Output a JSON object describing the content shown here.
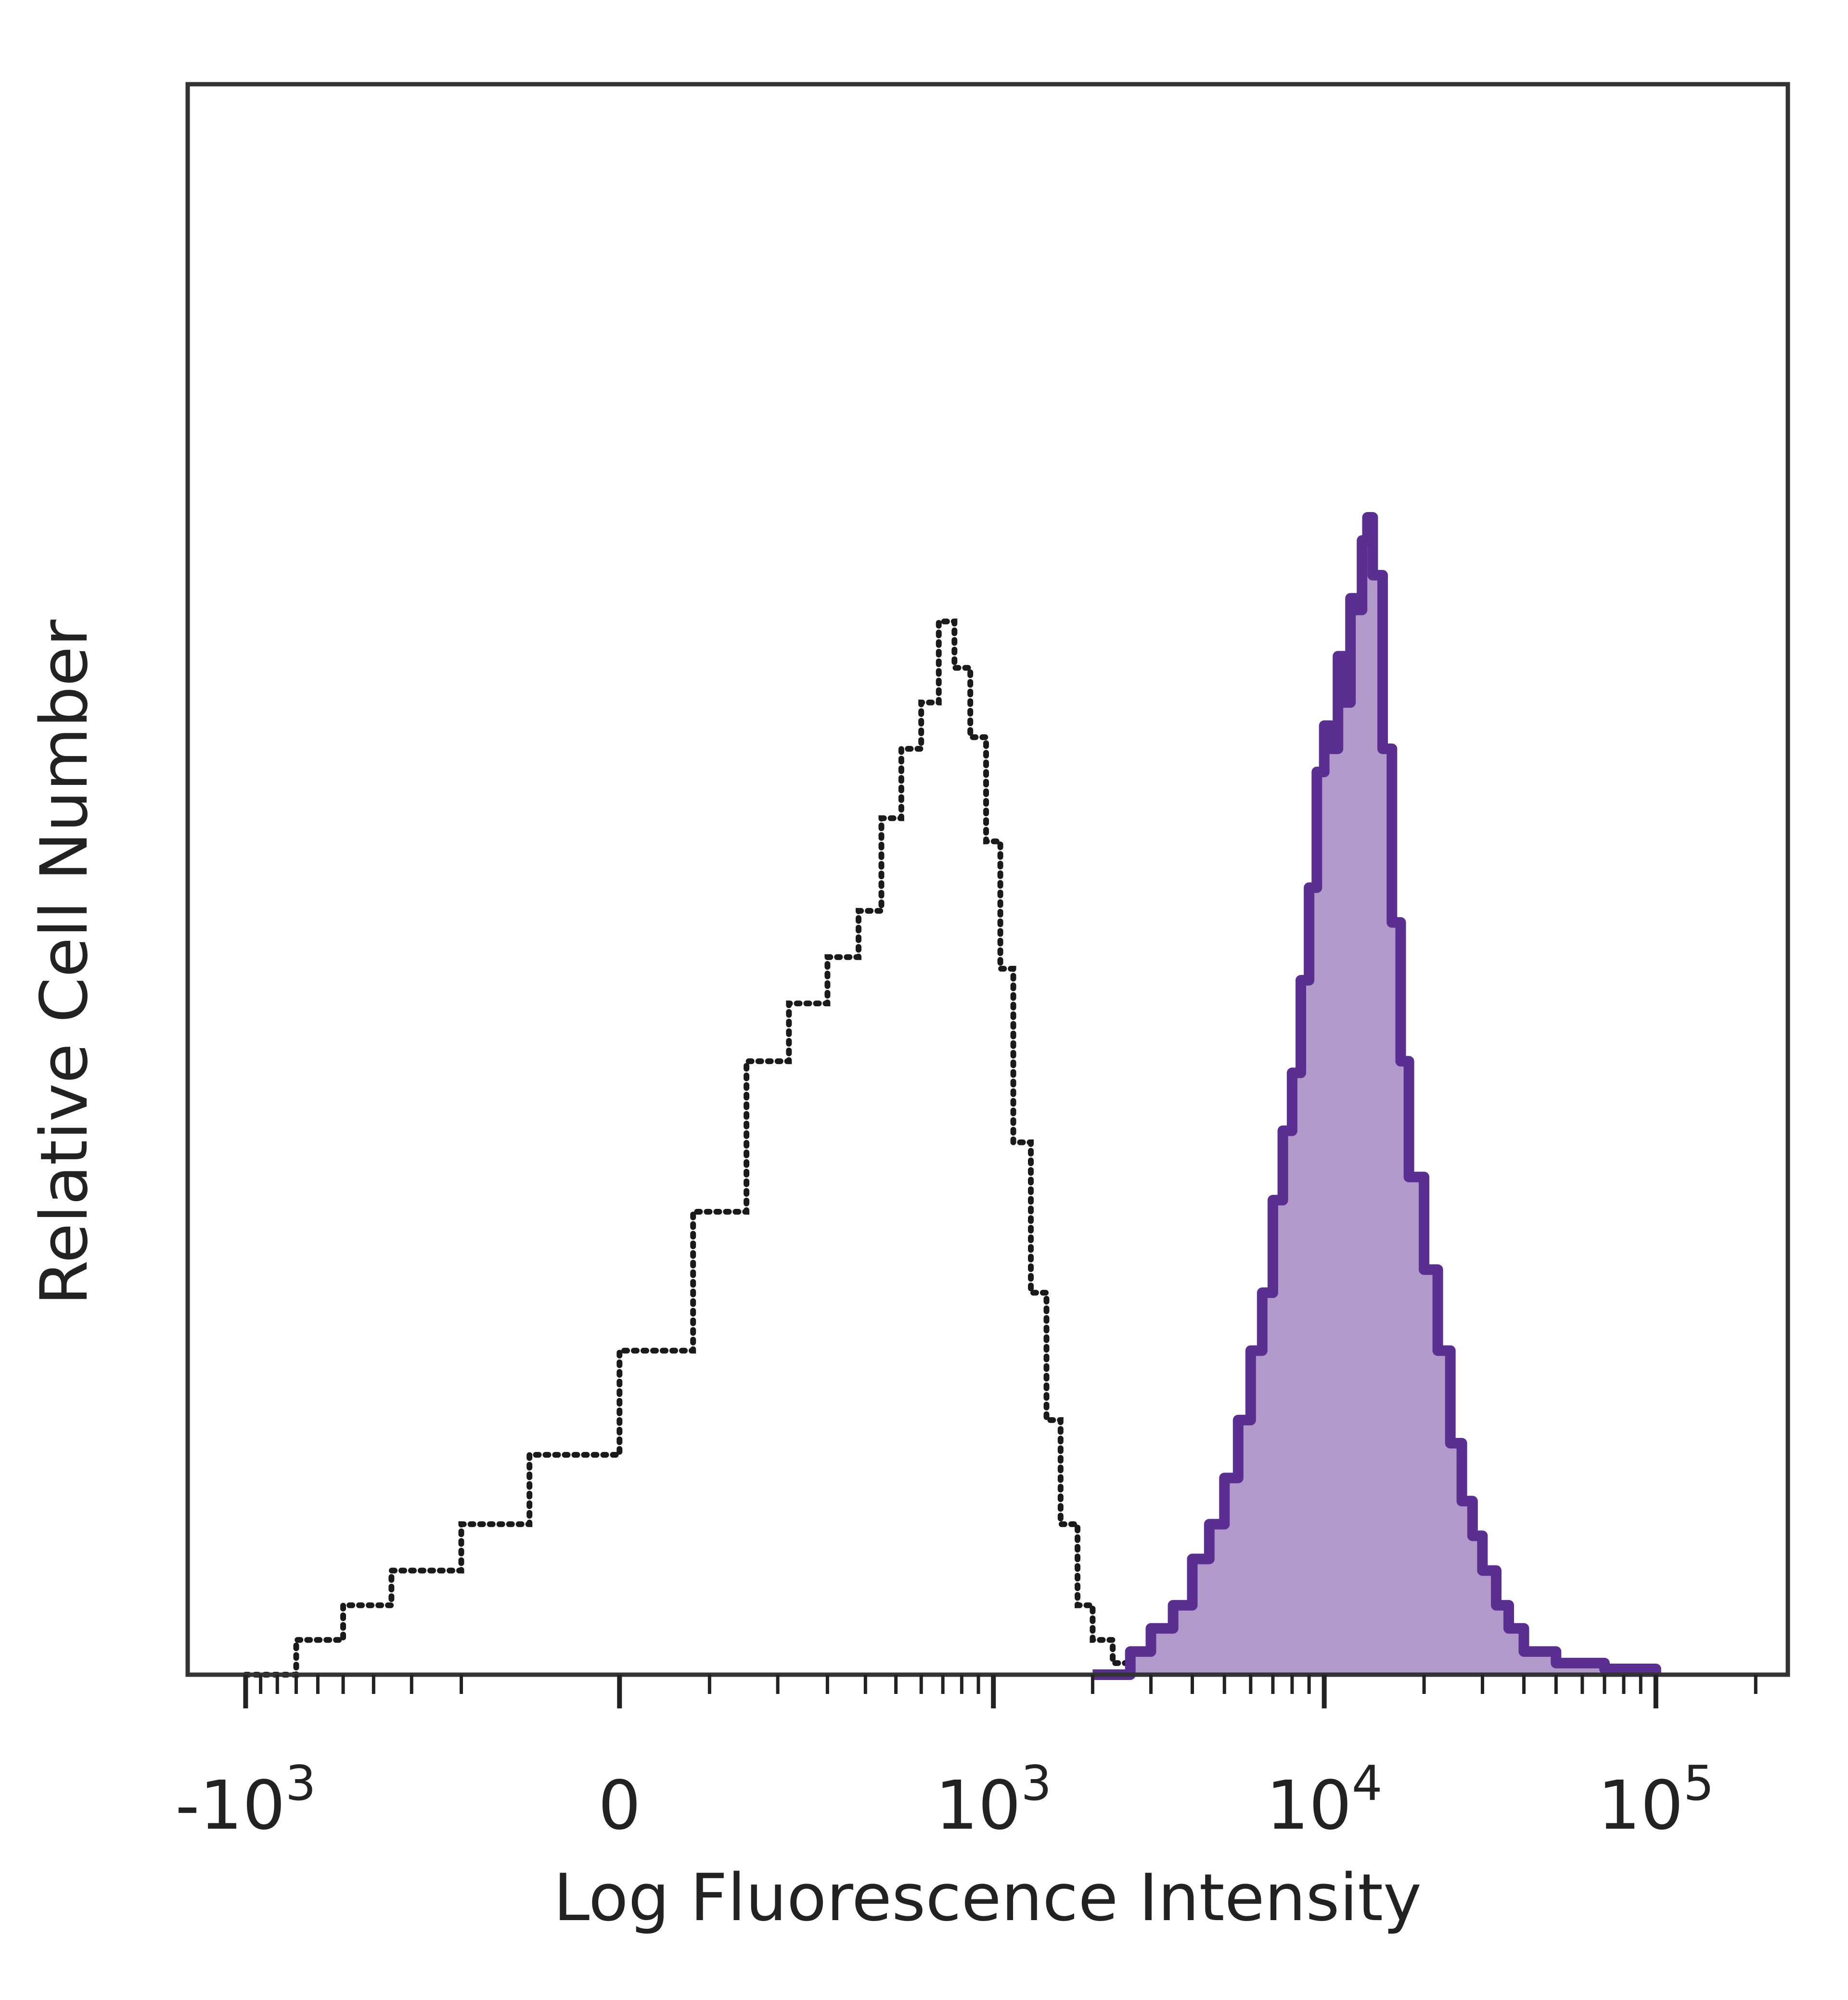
{
  "chart_data": {
    "type": "area",
    "title": "",
    "xlabel": "Log Fluorescence Intensity",
    "ylabel": "Relative Cell Number",
    "x_scale": "biexponential",
    "xlim": [
      -1500,
      250000
    ],
    "ylim": [
      0,
      100
    ],
    "grid": false,
    "legend": "none",
    "x_ticks": [
      {
        "value": -1000,
        "base": "-10",
        "exp": "3"
      },
      {
        "value": 0,
        "base": "0",
        "exp": ""
      },
      {
        "value": 1000,
        "base": "10",
        "exp": "3"
      },
      {
        "value": 10000,
        "base": "10",
        "exp": "4"
      },
      {
        "value": 100000,
        "base": "10",
        "exp": "5"
      }
    ],
    "series": [
      {
        "style": "dotted-outline",
        "color": "#1a1a1a",
        "x": [
          -1000,
          -700,
          -500,
          -350,
          -200,
          -100,
          0,
          80,
          150,
          220,
          300,
          380,
          450,
          520,
          600,
          680,
          760,
          850,
          950,
          1050,
          1150,
          1300,
          1450,
          1600,
          1800,
          2000,
          2300,
          2600
        ],
        "y": [
          0,
          3,
          6,
          9,
          13,
          19,
          28,
          40,
          53,
          58,
          62,
          66,
          74,
          80,
          84,
          91,
          87,
          81,
          72,
          61,
          46,
          33,
          22,
          13,
          6,
          3,
          1,
          0
        ]
      },
      {
        "style": "filled",
        "color": "#5b2e91",
        "fill": "#b199c9",
        "x": [
          2000,
          2600,
          3000,
          3500,
          4000,
          4500,
          5000,
          5500,
          6000,
          6500,
          7000,
          7500,
          8000,
          8500,
          9000,
          9500,
          10000,
          10500,
          11000,
          11500,
          12000,
          12500,
          13000,
          13500,
          14000,
          15000,
          16000,
          17000,
          18000,
          20000,
          22000,
          24000,
          26000,
          28000,
          30000,
          33000,
          36000,
          40000,
          50000,
          70000,
          100000
        ],
        "y": [
          0,
          2,
          4,
          6,
          10,
          13,
          17,
          22,
          28,
          33,
          41,
          47,
          52,
          60,
          68,
          78,
          82,
          80,
          88,
          84,
          93,
          92,
          98,
          100,
          95,
          80,
          65,
          53,
          43,
          35,
          28,
          20,
          15,
          12,
          9,
          6,
          4,
          2,
          1,
          0.5,
          0
        ]
      }
    ]
  }
}
